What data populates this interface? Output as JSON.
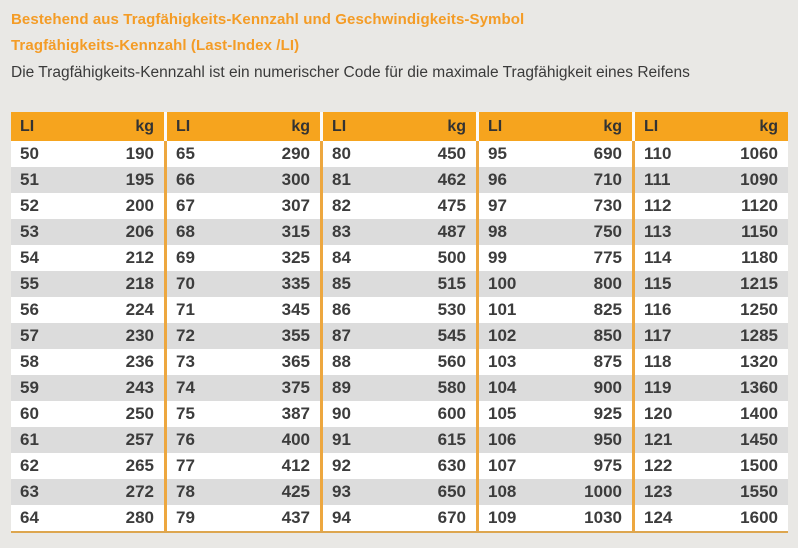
{
  "header": {
    "line1": "Bestehend aus Tragfähigkeits-Kennzahl und Geschwindigkeits-Symbol",
    "line2": "Tragfähigkeits-Kennzahl (Last-Index /LI)",
    "description": "Die Tragfähigkeits-Kennzahl ist ein numerischer Code für die maximale Tragfähigkeit eines Reifens"
  },
  "colors": {
    "title_orange": "#f49c26",
    "table_header_orange": "#f6a41e",
    "separator_orange": "#eda73f",
    "bottom_border": "#dda64f",
    "row_white": "#ffffff",
    "row_gray": "#dcdcdc",
    "page_background": "#e9e8e5",
    "text_dark": "#3c3c3c"
  },
  "table": {
    "column_headers": {
      "li": "LI",
      "kg": "kg"
    },
    "groups": [
      {
        "rows": [
          {
            "li": "50",
            "kg": "190"
          },
          {
            "li": "51",
            "kg": "195"
          },
          {
            "li": "52",
            "kg": "200"
          },
          {
            "li": "53",
            "kg": "206"
          },
          {
            "li": "54",
            "kg": "212"
          },
          {
            "li": "55",
            "kg": "218"
          },
          {
            "li": "56",
            "kg": "224"
          },
          {
            "li": "57",
            "kg": "230"
          },
          {
            "li": "58",
            "kg": "236"
          },
          {
            "li": "59",
            "kg": "243"
          },
          {
            "li": "60",
            "kg": "250"
          },
          {
            "li": "61",
            "kg": "257"
          },
          {
            "li": "62",
            "kg": "265"
          },
          {
            "li": "63",
            "kg": "272"
          },
          {
            "li": "64",
            "kg": "280"
          }
        ]
      },
      {
        "rows": [
          {
            "li": "65",
            "kg": "290"
          },
          {
            "li": "66",
            "kg": "300"
          },
          {
            "li": "67",
            "kg": "307"
          },
          {
            "li": "68",
            "kg": "315"
          },
          {
            "li": "69",
            "kg": "325"
          },
          {
            "li": "70",
            "kg": "335"
          },
          {
            "li": "71",
            "kg": "345"
          },
          {
            "li": "72",
            "kg": "355"
          },
          {
            "li": "73",
            "kg": "365"
          },
          {
            "li": "74",
            "kg": "375"
          },
          {
            "li": "75",
            "kg": "387"
          },
          {
            "li": "76",
            "kg": "400"
          },
          {
            "li": "77",
            "kg": "412"
          },
          {
            "li": "78",
            "kg": "425"
          },
          {
            "li": "79",
            "kg": "437"
          }
        ]
      },
      {
        "rows": [
          {
            "li": "80",
            "kg": "450"
          },
          {
            "li": "81",
            "kg": "462"
          },
          {
            "li": "82",
            "kg": "475"
          },
          {
            "li": "83",
            "kg": "487"
          },
          {
            "li": "84",
            "kg": "500"
          },
          {
            "li": "85",
            "kg": "515"
          },
          {
            "li": "86",
            "kg": "530"
          },
          {
            "li": "87",
            "kg": "545"
          },
          {
            "li": "88",
            "kg": "560"
          },
          {
            "li": "89",
            "kg": "580"
          },
          {
            "li": "90",
            "kg": "600"
          },
          {
            "li": "91",
            "kg": "615"
          },
          {
            "li": "92",
            "kg": "630"
          },
          {
            "li": "93",
            "kg": "650"
          },
          {
            "li": "94",
            "kg": "670"
          }
        ]
      },
      {
        "rows": [
          {
            "li": "95",
            "kg": "690"
          },
          {
            "li": "96",
            "kg": "710"
          },
          {
            "li": "97",
            "kg": "730"
          },
          {
            "li": "98",
            "kg": "750"
          },
          {
            "li": "99",
            "kg": "775"
          },
          {
            "li": "100",
            "kg": "800"
          },
          {
            "li": "101",
            "kg": "825"
          },
          {
            "li": "102",
            "kg": "850"
          },
          {
            "li": "103",
            "kg": "875"
          },
          {
            "li": "104",
            "kg": "900"
          },
          {
            "li": "105",
            "kg": "925"
          },
          {
            "li": "106",
            "kg": "950"
          },
          {
            "li": "107",
            "kg": "975"
          },
          {
            "li": "108",
            "kg": "1000"
          },
          {
            "li": "109",
            "kg": "1030"
          }
        ]
      },
      {
        "rows": [
          {
            "li": "110",
            "kg": "1060"
          },
          {
            "li": "111",
            "kg": "1090"
          },
          {
            "li": "112",
            "kg": "1120"
          },
          {
            "li": "113",
            "kg": "1150"
          },
          {
            "li": "114",
            "kg": "1180"
          },
          {
            "li": "115",
            "kg": "1215"
          },
          {
            "li": "116",
            "kg": "1250"
          },
          {
            "li": "117",
            "kg": "1285"
          },
          {
            "li": "118",
            "kg": "1320"
          },
          {
            "li": "119",
            "kg": "1360"
          },
          {
            "li": "120",
            "kg": "1400"
          },
          {
            "li": "121",
            "kg": "1450"
          },
          {
            "li": "122",
            "kg": "1500"
          },
          {
            "li": "123",
            "kg": "1550"
          },
          {
            "li": "124",
            "kg": "1600"
          }
        ]
      }
    ]
  }
}
